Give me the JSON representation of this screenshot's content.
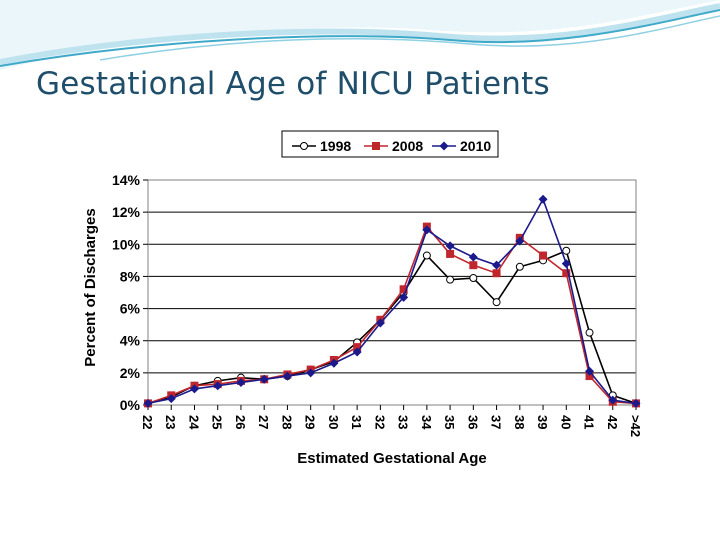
{
  "slide": {
    "title": "Gestational Age of NICU Patients"
  },
  "colors": {
    "title": "#1f4e6b",
    "swoosh_dark": "#3fa9c9",
    "swoosh_light": "#bfe3ee"
  },
  "chart_data": {
    "type": "line",
    "title": "",
    "xlabel": "Estimated Gestational Age",
    "ylabel": "Percent of Discharges",
    "categories": [
      "22",
      "23",
      "24",
      "25",
      "26",
      "27",
      "28",
      "29",
      "30",
      "31",
      "32",
      "33",
      "34",
      "35",
      "36",
      "37",
      "38",
      "39",
      "40",
      "41",
      "42",
      ">42"
    ],
    "ylim": [
      0,
      14
    ],
    "yticks": [
      0,
      2,
      4,
      6,
      8,
      10,
      12,
      14
    ],
    "ytick_labels": [
      "0%",
      "2%",
      "4%",
      "6%",
      "8%",
      "10%",
      "12%",
      "14%"
    ],
    "grid": true,
    "legend_position": "top-center",
    "series": [
      {
        "name": "1998",
        "color": "#000000",
        "marker": "open-circle",
        "values": [
          0.1,
          0.5,
          1.2,
          1.5,
          1.7,
          1.6,
          1.8,
          2.2,
          2.7,
          3.9,
          5.3,
          7.0,
          9.3,
          7.8,
          7.9,
          6.4,
          8.6,
          9.0,
          9.6,
          4.5,
          0.6,
          0.1
        ]
      },
      {
        "name": "2008",
        "color": "#c0272d",
        "marker": "square",
        "values": [
          0.1,
          0.6,
          1.2,
          1.3,
          1.5,
          1.6,
          1.9,
          2.2,
          2.8,
          3.6,
          5.3,
          7.2,
          11.1,
          9.4,
          8.7,
          8.2,
          10.4,
          9.3,
          8.2,
          1.8,
          0.2,
          0.1
        ]
      },
      {
        "name": "2010",
        "color": "#1a1a8c",
        "marker": "diamond",
        "values": [
          0.1,
          0.4,
          1.0,
          1.2,
          1.4,
          1.6,
          1.8,
          2.0,
          2.6,
          3.3,
          5.1,
          6.7,
          10.9,
          9.9,
          9.2,
          8.7,
          10.2,
          12.8,
          8.8,
          2.1,
          0.3,
          0.1
        ]
      }
    ]
  }
}
